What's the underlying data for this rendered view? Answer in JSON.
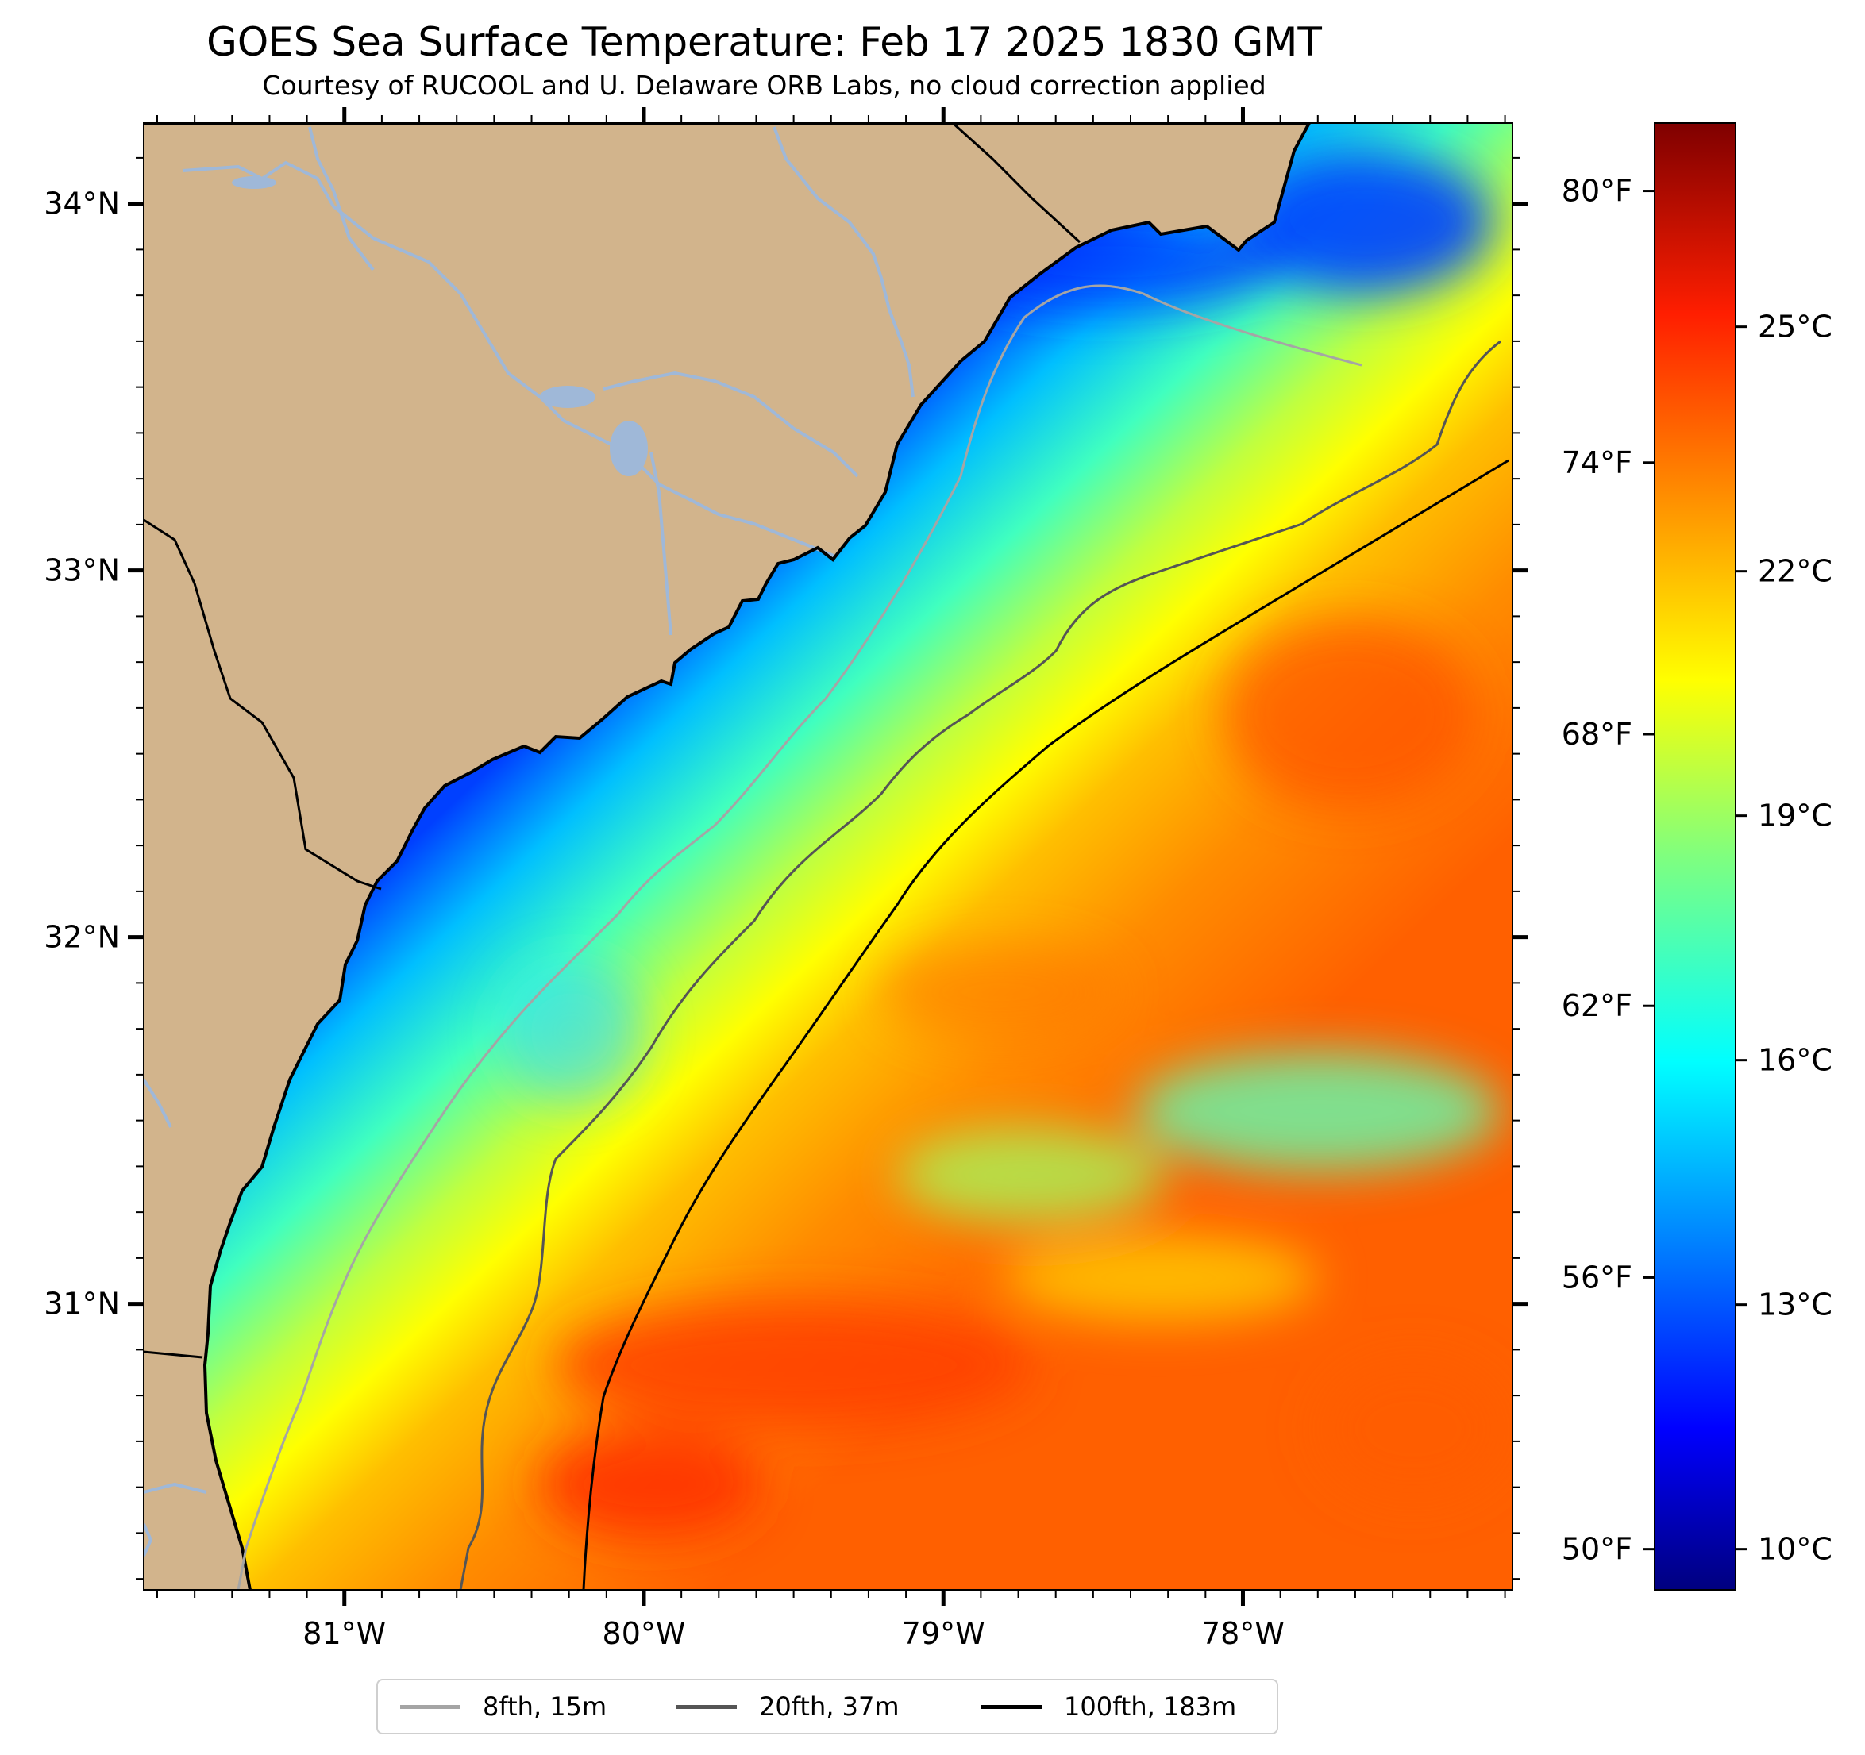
{
  "title": "GOES Sea Surface Temperature: Feb 17 2025 1830 GMT",
  "subtitle": "Courtesy of RUCOOL and U. Delaware ORB Labs, no cloud correction applied",
  "chart_data": {
    "type": "heatmap",
    "variable": "Sea Surface Temperature",
    "lon_range": [
      -81.67,
      -77.1
    ],
    "lat_range": [
      30.22,
      34.22
    ],
    "lat_ticks": [
      {
        "value": 34,
        "label": "34°N"
      },
      {
        "value": 33,
        "label": "33°N"
      },
      {
        "value": 32,
        "label": "32°N"
      },
      {
        "value": 31,
        "label": "31°N"
      }
    ],
    "lon_ticks": [
      {
        "value": -81,
        "label": "81°W"
      },
      {
        "value": -80,
        "label": "80°W"
      },
      {
        "value": -79,
        "label": "79°W"
      },
      {
        "value": -78,
        "label": "78°W"
      }
    ],
    "colorbar": {
      "range_c": [
        9.5,
        27.5
      ],
      "colormap": "jet",
      "celsius_ticks": [
        {
          "value": 10,
          "label": "10°C"
        },
        {
          "value": 13,
          "label": "13°C"
        },
        {
          "value": 16,
          "label": "16°C"
        },
        {
          "value": 19,
          "label": "19°C"
        },
        {
          "value": 22,
          "label": "22°C"
        },
        {
          "value": 25,
          "label": "25°C"
        }
      ],
      "fahrenheit_ticks": [
        {
          "value": 50,
          "label": "50°F"
        },
        {
          "value": 56,
          "label": "56°F"
        },
        {
          "value": 62,
          "label": "62°F"
        },
        {
          "value": 68,
          "label": "68°F"
        },
        {
          "value": 74,
          "label": "74°F"
        },
        {
          "value": 80,
          "label": "80°F"
        }
      ]
    },
    "legend": [
      {
        "label": "8fth, 15m",
        "color": "#a5a5a5"
      },
      {
        "label": "20fth, 37m",
        "color": "#555555"
      },
      {
        "label": "100fth, 183m",
        "color": "#000000"
      }
    ],
    "colors": {
      "land": "#d2b48c",
      "river": "#9fb8d8",
      "coastline": "#000000"
    }
  }
}
